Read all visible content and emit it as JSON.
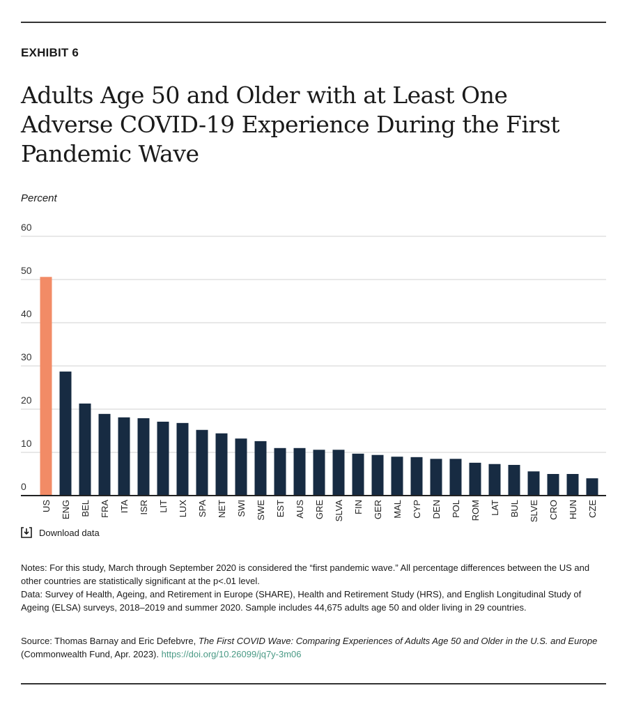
{
  "exhibit": "EXHIBIT 6",
  "title": "Adults Age 50 and Older with at Least One Adverse COVID-19 Experience During the First Pandemic Wave",
  "download_label": "Download data",
  "notes": "Notes: For this study, March through September 2020 is considered the “first pandemic wave.” All percentage differences between the US and other countries are statistically significant at the p<.01 level.",
  "data_note": "Data: Survey of Health, Ageing, and Retirement in Europe (SHARE), Health and Retirement Study (HRS), and English Longitudinal Study of Ageing (ELSA) surveys, 2018–2019 and summer 2020. Sample includes 44,675 adults age 50 and older living in 29 countries.",
  "source": {
    "prefix": "Source: Thomas Barnay and Eric Defebvre, ",
    "title": "The First COVID Wave: Comparing Experiences of Adults Age 50 and Older in the U.S. and Europe",
    "suffix": " (Commonwealth Fund, Apr. 2023). ",
    "link": "https://doi.org/10.26099/jq7y-3m06"
  },
  "colors": {
    "highlight": "#f28b66",
    "bar": "#172b42",
    "grid": "#d0d0d0",
    "link": "#4a9a85"
  },
  "chart_data": {
    "type": "bar",
    "title": "Adults Age 50 and Older with at Least One Adverse COVID-19 Experience During the First Pandemic Wave",
    "xlabel": "",
    "ylabel": "Percent",
    "ylim": [
      0,
      60
    ],
    "yticks": [
      0,
      10,
      20,
      30,
      40,
      50,
      60
    ],
    "grid": true,
    "highlight_category": "US",
    "categories": [
      "US",
      "ENG",
      "BEL",
      "FRA",
      "ITA",
      "ISR",
      "LIT",
      "LUX",
      "SPA",
      "NET",
      "SWI",
      "SWE",
      "EST",
      "AUS",
      "GRE",
      "SLVA",
      "FIN",
      "GER",
      "MAL",
      "CYP",
      "DEN",
      "POL",
      "ROM",
      "LAT",
      "BUL",
      "SLVE",
      "CRO",
      "HUN",
      "CZE"
    ],
    "values": [
      50.6,
      28.7,
      21.3,
      18.9,
      18.1,
      17.9,
      17.1,
      16.8,
      15.2,
      14.4,
      13.2,
      12.6,
      11.0,
      11.0,
      10.6,
      10.6,
      9.7,
      9.4,
      9.0,
      8.9,
      8.5,
      8.5,
      7.6,
      7.3,
      7.1,
      5.6,
      5.0,
      5.0,
      4.0
    ]
  }
}
